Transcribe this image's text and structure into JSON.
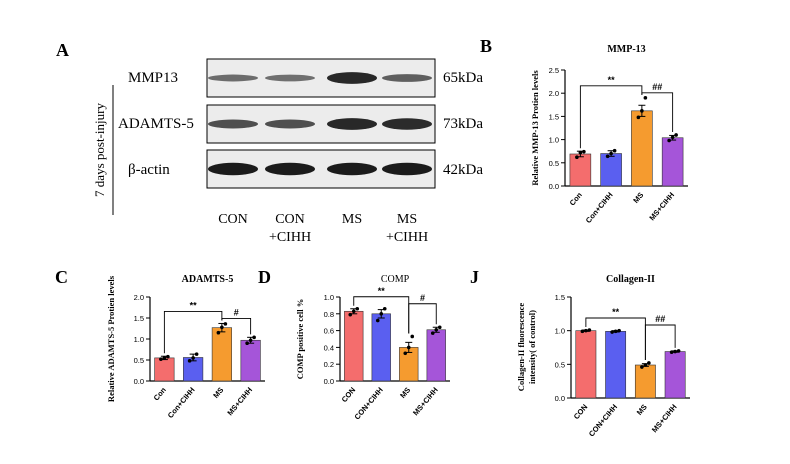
{
  "colors": {
    "con": "#f46d6d",
    "con_cihh": "#5a5ff0",
    "ms": "#f59b2f",
    "ms_cihh": "#a555d9",
    "axis": "#000000"
  },
  "blot": {
    "panel_letter": "A",
    "side_label": "7 days post-injury",
    "rows": [
      {
        "protein": "MMP13",
        "size": "65kDa",
        "intensity": [
          0.32,
          0.3,
          0.85,
          0.42
        ]
      },
      {
        "protein": "ADAMTS-5",
        "size": "73kDa",
        "intensity": [
          0.55,
          0.55,
          0.85,
          0.82
        ]
      },
      {
        "protein": "β-actin",
        "size": "42kDa",
        "intensity": [
          0.95,
          0.95,
          0.95,
          0.95
        ]
      }
    ],
    "lanes": [
      {
        "line1": "CON",
        "line2": ""
      },
      {
        "line1": "CON",
        "line2": "+CIHH"
      },
      {
        "line1": "MS",
        "line2": ""
      },
      {
        "line1": "MS",
        "line2": "+CIHH"
      }
    ]
  },
  "chart_data": [
    {
      "id": "B",
      "type": "bar",
      "panel_letter": "B",
      "title": "MMP-13",
      "ylabel": "Relative MMP-13 Protien levels",
      "categories": [
        "Con",
        "Con+CIHH",
        "MS",
        "MS+CIHH"
      ],
      "values": [
        0.69,
        0.7,
        1.62,
        1.04
      ],
      "errors": [
        0.06,
        0.06,
        0.12,
        0.05
      ],
      "points": [
        [
          0.62,
          0.72,
          0.74
        ],
        [
          0.64,
          0.7,
          0.76
        ],
        [
          1.48,
          1.62,
          1.9
        ],
        [
          0.98,
          1.05,
          1.1
        ]
      ],
      "ylim": [
        0,
        2.5
      ],
      "yticks": [
        "0.0",
        "0.5",
        "1.0",
        "1.5",
        "2.0",
        "2.5"
      ],
      "sig": [
        {
          "from": 0,
          "to": 2,
          "label": "**"
        },
        {
          "from": 2,
          "to": 3,
          "label": "##"
        }
      ]
    },
    {
      "id": "C",
      "type": "bar",
      "panel_letter": "C",
      "title": "ADAMTS-5",
      "ylabel": "Relative ADAMTS-5 Protien levels",
      "categories": [
        "Con",
        "Con+CIHH",
        "MS",
        "MS+CIHH"
      ],
      "values": [
        0.55,
        0.56,
        1.27,
        0.97
      ],
      "errors": [
        0.04,
        0.08,
        0.1,
        0.07
      ],
      "points": [
        [
          0.52,
          0.55,
          0.58
        ],
        [
          0.48,
          0.55,
          0.64
        ],
        [
          1.15,
          1.28,
          1.36
        ],
        [
          0.9,
          0.97,
          1.04
        ]
      ],
      "ylim": [
        0,
        2.0
      ],
      "yticks": [
        "0.0",
        "0.5",
        "1.0",
        "1.5",
        "2.0"
      ],
      "sig": [
        {
          "from": 0,
          "to": 2,
          "label": "**"
        },
        {
          "from": 2,
          "to": 3,
          "label": "#"
        }
      ]
    },
    {
      "id": "D",
      "type": "bar",
      "panel_letter": "D",
      "title": "COMP",
      "ylabel": "COMP positive cell %",
      "categories": [
        "CON",
        "CON+CIHH",
        "MS",
        "MS+CIHH"
      ],
      "values": [
        0.83,
        0.8,
        0.4,
        0.61
      ],
      "errors": [
        0.03,
        0.05,
        0.06,
        0.03
      ],
      "points": [
        [
          0.79,
          0.83,
          0.86
        ],
        [
          0.72,
          0.8,
          0.86
        ],
        [
          0.33,
          0.4,
          0.53
        ],
        [
          0.57,
          0.61,
          0.64
        ]
      ],
      "ylim": [
        0,
        1.0
      ],
      "yticks": [
        "0.0",
        "0.2",
        "0.4",
        "0.6",
        "0.8",
        "1.0"
      ],
      "sig": [
        {
          "from": 0,
          "to": 2,
          "label": "**"
        },
        {
          "from": 2,
          "to": 3,
          "label": "#"
        }
      ]
    },
    {
      "id": "J",
      "type": "bar",
      "panel_letter": "J",
      "title": "Collagen-II",
      "ylabel_lines": [
        "Collagen-II fluorescence",
        "intensity( of control)"
      ],
      "categories": [
        "CON",
        "CON+CIHH",
        "MS",
        "MS+CIHH"
      ],
      "values": [
        1.0,
        0.99,
        0.49,
        0.69
      ],
      "errors": [
        0.01,
        0.01,
        0.02,
        0.01
      ],
      "points": [
        [
          0.99,
          1.0,
          1.01
        ],
        [
          0.98,
          0.99,
          1.0
        ],
        [
          0.46,
          0.49,
          0.52
        ],
        [
          0.68,
          0.69,
          0.7
        ]
      ],
      "ylim": [
        0,
        1.5
      ],
      "yticks": [
        "0.0",
        "0.5",
        "1.0",
        "1.5"
      ],
      "sig": [
        {
          "from": 0,
          "to": 2,
          "label": "**"
        },
        {
          "from": 2,
          "to": 3,
          "label": "##"
        }
      ]
    }
  ]
}
